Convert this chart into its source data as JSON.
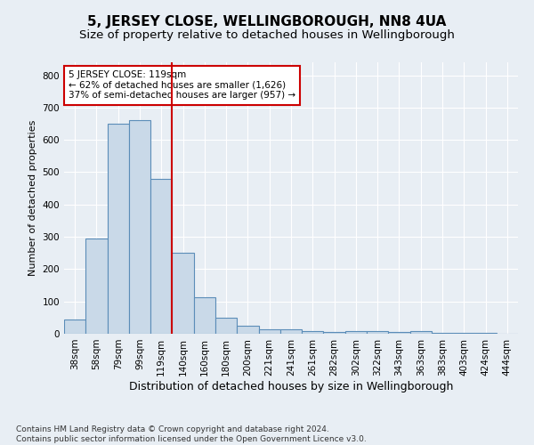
{
  "title": "5, JERSEY CLOSE, WELLINGBOROUGH, NN8 4UA",
  "subtitle": "Size of property relative to detached houses in Wellingborough",
  "xlabel": "Distribution of detached houses by size in Wellingborough",
  "ylabel": "Number of detached properties",
  "categories": [
    "38sqm",
    "58sqm",
    "79sqm",
    "99sqm",
    "119sqm",
    "140sqm",
    "160sqm",
    "180sqm",
    "200sqm",
    "221sqm",
    "241sqm",
    "261sqm",
    "282sqm",
    "302sqm",
    "322sqm",
    "343sqm",
    "363sqm",
    "383sqm",
    "403sqm",
    "424sqm",
    "444sqm"
  ],
  "values": [
    45,
    295,
    650,
    660,
    478,
    250,
    113,
    50,
    25,
    15,
    14,
    8,
    6,
    8,
    8,
    5,
    7,
    4,
    3,
    4,
    0
  ],
  "bar_color": "#c9d9e8",
  "bar_edge_color": "#5b8db8",
  "marker_bar_index": 4,
  "marker_line_color": "#cc0000",
  "annotation_line1": "5 JERSEY CLOSE: 119sqm",
  "annotation_line2": "← 62% of detached houses are smaller (1,626)",
  "annotation_line3": "37% of semi-detached houses are larger (957) →",
  "annotation_box_color": "#ffffff",
  "annotation_box_edge_color": "#cc0000",
  "ylim": [
    0,
    840
  ],
  "yticks": [
    0,
    100,
    200,
    300,
    400,
    500,
    600,
    700,
    800
  ],
  "background_color": "#e8eef4",
  "plot_background_color": "#e8eef4",
  "footer_text": "Contains HM Land Registry data © Crown copyright and database right 2024.\nContains public sector information licensed under the Open Government Licence v3.0.",
  "title_fontsize": 11,
  "subtitle_fontsize": 9.5,
  "xlabel_fontsize": 9,
  "ylabel_fontsize": 8,
  "tick_fontsize": 7.5,
  "annotation_fontsize": 7.5,
  "footer_fontsize": 6.5
}
